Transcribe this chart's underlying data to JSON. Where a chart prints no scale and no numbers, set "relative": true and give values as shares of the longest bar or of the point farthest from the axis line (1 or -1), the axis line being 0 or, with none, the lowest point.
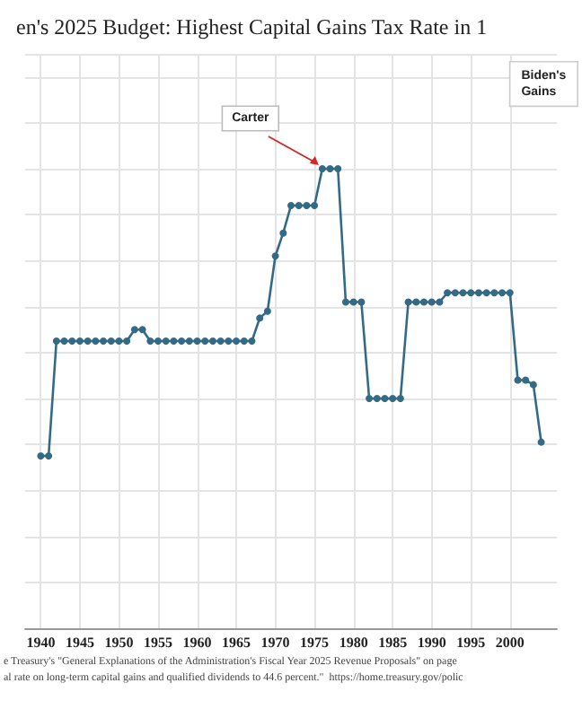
{
  "chart_data": {
    "type": "line",
    "title": "en's 2025 Budget: Highest Capital Gains Tax Rate in 1",
    "relative": true,
    "x": [
      1940,
      1941,
      1942,
      1943,
      1944,
      1945,
      1946,
      1947,
      1948,
      1949,
      1950,
      1951,
      1952,
      1953,
      1954,
      1955,
      1956,
      1957,
      1958,
      1959,
      1960,
      1961,
      1962,
      1963,
      1964,
      1965,
      1966,
      1967,
      1968,
      1969,
      1970,
      1971,
      1972,
      1973,
      1974,
      1975,
      1976,
      1977,
      1978,
      1979,
      1980,
      1981,
      1982,
      1983,
      1984,
      1985,
      1986,
      1987,
      1988,
      1989,
      1990,
      1991,
      1992,
      1993,
      1994,
      1995,
      1996,
      1997,
      1998,
      1999,
      2000,
      2001,
      2002,
      2003,
      2004
    ],
    "series": [
      {
        "color": "#336b87",
        "values": [
          0.375,
          0.375,
          0.625,
          0.625,
          0.625,
          0.625,
          0.625,
          0.625,
          0.625,
          0.625,
          0.625,
          0.625,
          0.65,
          0.65,
          0.625,
          0.625,
          0.625,
          0.625,
          0.625,
          0.625,
          0.625,
          0.625,
          0.625,
          0.625,
          0.625,
          0.625,
          0.625,
          0.625,
          0.675,
          0.69,
          0.81,
          0.86,
          0.92,
          0.92,
          0.92,
          0.92,
          1,
          1,
          1,
          0.71,
          0.71,
          0.71,
          0.5,
          0.5,
          0.5,
          0.5,
          0.5,
          0.71,
          0.71,
          0.71,
          0.71,
          0.71,
          0.73,
          0.73,
          0.73,
          0.73,
          0.73,
          0.73,
          0.73,
          0.73,
          0.73,
          0.54,
          0.54,
          0.53,
          0.405
        ]
      }
    ],
    "xlim": [
      1938,
      2006
    ],
    "xticks": [
      1940,
      1945,
      1950,
      1955,
      1960,
      1965,
      1970,
      1975,
      1980,
      1985,
      1990,
      1995,
      2000
    ],
    "grid": true,
    "marker": "circle",
    "line_style": "solid",
    "annotations": [
      {
        "text": "Carter",
        "x": 1976,
        "y": 1
      },
      "Biden's\nGains",
      "e Treasury's \"General Explanations of the Administration's Fiscal Year 2025 Revenue Proposals\" on page",
      "al rate on long-term capital gains and qualified dividends to 44.6 percent.\"  https://home.treasury.gov/polic"
    ]
  }
}
